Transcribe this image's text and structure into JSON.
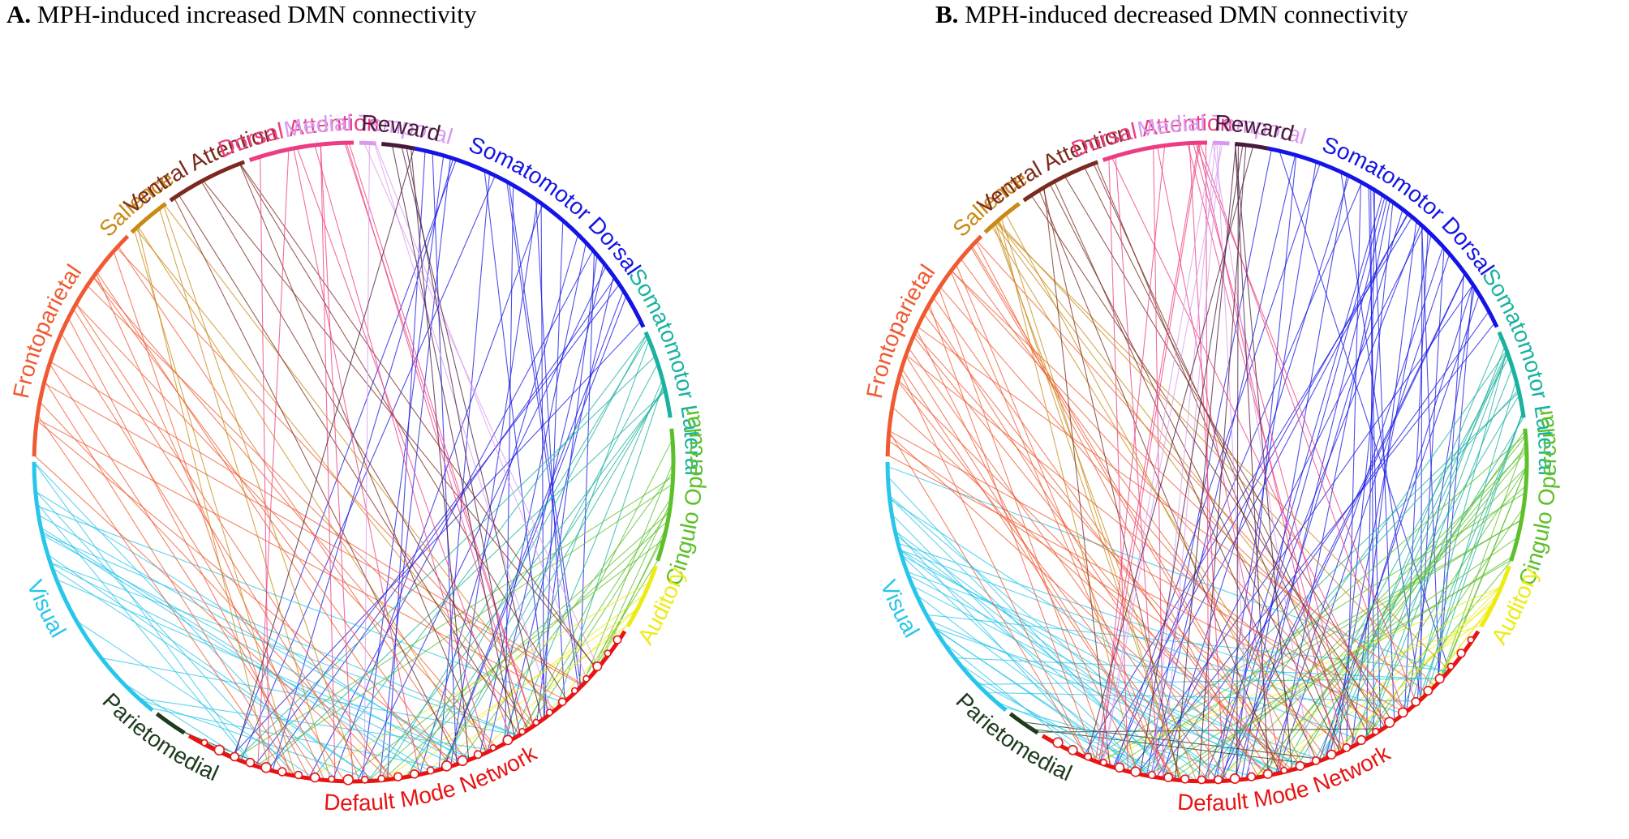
{
  "panels": [
    {
      "id": "A",
      "letter": "A.",
      "title": "MPH-induced increased DMN connectivity",
      "density": 1.0
    },
    {
      "id": "B",
      "letter": "B.",
      "title": "MPH-induced decreased DMN connectivity",
      "density": 1.45
    }
  ],
  "networks": [
    {
      "name": "Somatomotor Dorsal",
      "color": "#1414e6",
      "seg_deg": [
        -79,
        -25
      ],
      "weight": 30
    },
    {
      "name": "Somatomotor Lateral",
      "color": "#19b2a0",
      "seg_deg": [
        -24,
        -8
      ],
      "weight": 12
    },
    {
      "name": "Cingulo Opercular",
      "color": "#5cc02a",
      "seg_deg": [
        -6,
        18
      ],
      "weight": 14
    },
    {
      "name": "Auditory",
      "color": "#ecec14",
      "seg_deg": [
        19,
        31
      ],
      "weight": 6
    },
    {
      "name": "Default Mode Network",
      "color": "#e81414",
      "seg_deg": [
        32,
        121
      ],
      "weight": 0
    },
    {
      "name": "Parietomedial",
      "color": "#1e3b1e",
      "seg_deg": [
        122,
        128
      ],
      "weight": 2
    },
    {
      "name": "Visual",
      "color": "#27c6ea",
      "seg_deg": [
        129,
        180
      ],
      "weight": 22
    },
    {
      "name": "Frontoparietal",
      "color": "#f05a32",
      "seg_deg": [
        181,
        225
      ],
      "weight": 22
    },
    {
      "name": "Salience",
      "color": "#c98a14",
      "seg_deg": [
        226,
        234
      ],
      "weight": 7
    },
    {
      "name": "Ventral Attention",
      "color": "#7a2a1e",
      "seg_deg": [
        235,
        250
      ],
      "weight": 7
    },
    {
      "name": "Dorsal Attention",
      "color": "#ec3c82",
      "seg_deg": [
        251,
        270
      ],
      "weight": 10
    },
    {
      "name": "Medial Temporal",
      "color": "#d89af0",
      "seg_deg": [
        271,
        274
      ],
      "weight": 4
    },
    {
      "name": "Reward",
      "color": "#4a1a3a",
      "seg_deg": [
        275,
        281
      ],
      "weight": 5
    }
  ]
}
